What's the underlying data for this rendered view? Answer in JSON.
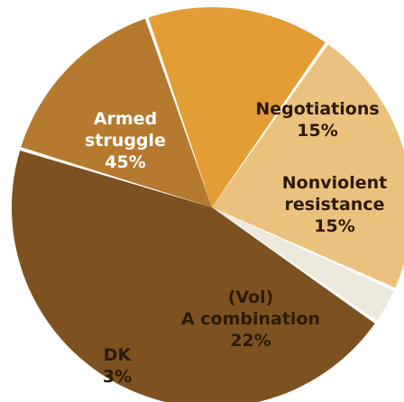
{
  "chart_data": {
    "type": "pie",
    "title": "",
    "slices": [
      {
        "label_lines": [
          "Negotiations",
          "15%"
        ],
        "value": 15,
        "color": "#b57a30",
        "text_color": "#2b1a08"
      },
      {
        "label_lines": [
          "Nonviolent",
          "resistance",
          "15%"
        ],
        "value": 15,
        "color": "#e29e35",
        "text_color": "#2b1a08"
      },
      {
        "label_lines": [
          "(Vol)",
          "A combination",
          "22%"
        ],
        "value": 22,
        "color": "#ebc27d",
        "text_color": "#2b1a08"
      },
      {
        "label_lines": [
          "DK",
          "3%"
        ],
        "value": 3,
        "color": "#ede8dc",
        "text_color": "#2b1a08"
      },
      {
        "label_lines": [
          "Armed",
          "struggle",
          "45%"
        ],
        "value": 45,
        "color": "#7d5220",
        "text_color": "#ffffff"
      }
    ]
  }
}
